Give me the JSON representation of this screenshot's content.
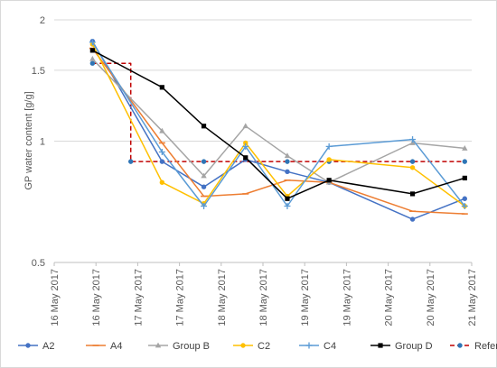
{
  "chart_data": {
    "type": "line",
    "title": "",
    "xlabel": "",
    "ylabel": "GP water content [g/g]",
    "y_scale": "log",
    "ylim": [
      0.5,
      2
    ],
    "y_ticks": [
      0.5,
      1,
      1.5,
      2
    ],
    "y_tick_labels": [
      "0.5",
      "1",
      "1.5",
      "2"
    ],
    "xlim": [
      "2017-05-16 00:00",
      "2017-05-21 00:00"
    ],
    "x_ticks": [
      "2017-05-16 00:00",
      "2017-05-16 12:00",
      "2017-05-17 00:00",
      "2017-05-17 12:00",
      "2017-05-18 00:00",
      "2017-05-18 12:00",
      "2017-05-19 00:00",
      "2017-05-19 12:00",
      "2017-05-20 00:00",
      "2017-05-20 12:00",
      "2017-05-21 00:00"
    ],
    "x_tick_labels": [
      "16 May 2017",
      "16 May 2017",
      "17 May 2017",
      "17 May 2017",
      "18 May 2017",
      "18 May 2017",
      "19 May 2017",
      "19 May 2017",
      "20 May 2017",
      "20 May 2017",
      "21 May 2017"
    ],
    "grid": "horizontal",
    "legend_position": "bottom",
    "series": [
      {
        "name": "A2",
        "color": "#4472c4",
        "marker": "circle",
        "dash": "solid",
        "points": [
          [
            "2017-05-16 11:00",
            1.77
          ],
          [
            "2017-05-17 07:00",
            0.89
          ],
          [
            "2017-05-17 19:00",
            0.77
          ],
          [
            "2017-05-18 07:00",
            0.9
          ],
          [
            "2017-05-18 19:00",
            0.84
          ],
          [
            "2017-05-19 07:00",
            0.79
          ],
          [
            "2017-05-20 07:00",
            0.64
          ],
          [
            "2017-05-20 22:00",
            0.72
          ]
        ]
      },
      {
        "name": "A4",
        "color": "#ed7d31",
        "marker": "dash",
        "dash": "solid",
        "points": [
          [
            "2017-05-16 11:00",
            1.7
          ],
          [
            "2017-05-17 07:00",
            0.99
          ],
          [
            "2017-05-17 19:00",
            0.73
          ],
          [
            "2017-05-18 07:00",
            0.74
          ],
          [
            "2017-05-18 19:00",
            0.8
          ],
          [
            "2017-05-19 07:00",
            0.79
          ],
          [
            "2017-05-20 07:00",
            0.67
          ],
          [
            "2017-05-20 22:00",
            0.66
          ]
        ]
      },
      {
        "name": "Group B",
        "color": "#a5a5a5",
        "marker": "triangle",
        "dash": "solid",
        "points": [
          [
            "2017-05-16 11:00",
            1.6
          ],
          [
            "2017-05-17 07:00",
            1.06
          ],
          [
            "2017-05-17 19:00",
            0.82
          ],
          [
            "2017-05-18 07:00",
            1.09
          ],
          [
            "2017-05-18 19:00",
            0.92
          ],
          [
            "2017-05-19 07:00",
            0.79
          ],
          [
            "2017-05-20 07:00",
            0.99
          ],
          [
            "2017-05-20 22:00",
            0.96
          ]
        ]
      },
      {
        "name": "C2",
        "color": "#ffc000",
        "marker": "circle",
        "dash": "solid",
        "points": [
          [
            "2017-05-16 11:00",
            1.74
          ],
          [
            "2017-05-17 07:00",
            0.79
          ],
          [
            "2017-05-17 19:00",
            0.7
          ],
          [
            "2017-05-18 07:00",
            0.99
          ],
          [
            "2017-05-18 19:00",
            0.73
          ],
          [
            "2017-05-19 07:00",
            0.9
          ],
          [
            "2017-05-20 07:00",
            0.86
          ],
          [
            "2017-05-20 22:00",
            0.69
          ]
        ]
      },
      {
        "name": "C4",
        "color": "#5b9bd5",
        "marker": "plus",
        "dash": "solid",
        "points": [
          [
            "2017-05-16 11:00",
            1.76
          ],
          [
            "2017-05-17 07:00",
            0.94
          ],
          [
            "2017-05-17 19:00",
            0.69
          ],
          [
            "2017-05-18 07:00",
            0.97
          ],
          [
            "2017-05-18 19:00",
            0.69
          ],
          [
            "2017-05-19 07:00",
            0.97
          ],
          [
            "2017-05-20 07:00",
            1.01
          ],
          [
            "2017-05-20 22:00",
            0.69
          ]
        ]
      },
      {
        "name": "Group D",
        "color": "#000000",
        "marker": "square",
        "dash": "solid",
        "points": [
          [
            "2017-05-16 11:00",
            1.68
          ],
          [
            "2017-05-17 07:00",
            1.36
          ],
          [
            "2017-05-17 19:00",
            1.09
          ],
          [
            "2017-05-18 07:00",
            0.91
          ],
          [
            "2017-05-18 19:00",
            0.72
          ],
          [
            "2017-05-19 07:00",
            0.8
          ],
          [
            "2017-05-20 07:00",
            0.74
          ],
          [
            "2017-05-20 22:00",
            0.81
          ]
        ]
      },
      {
        "name": "Reference",
        "color": "#c00000",
        "marker": "circle",
        "marker_color": "#2e75b6",
        "dash": "dashed",
        "step": true,
        "points": [
          [
            "2017-05-16 11:00",
            1.56
          ],
          [
            "2017-05-16 22:00",
            1.56
          ],
          [
            "2017-05-16 22:00",
            0.89
          ],
          [
            "2017-05-17 19:00",
            0.89
          ],
          [
            "2017-05-18 19:00",
            0.89
          ],
          [
            "2017-05-19 07:00",
            0.89
          ],
          [
            "2017-05-20 07:00",
            0.89
          ],
          [
            "2017-05-20 22:00",
            0.89
          ]
        ]
      }
    ]
  }
}
